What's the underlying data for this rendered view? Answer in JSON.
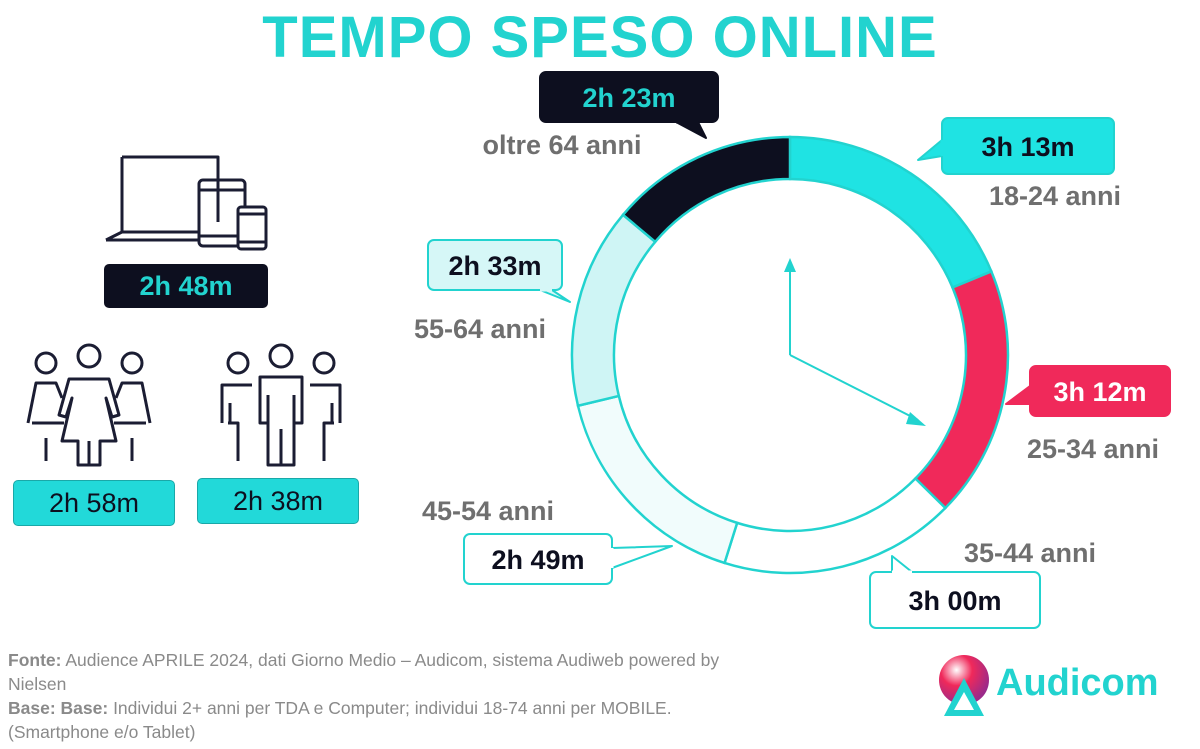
{
  "title": "TEMPO SPESO ONLINE",
  "devices": {
    "total_time": "2h 48m",
    "female_time": "2h 58m",
    "male_time": "2h 38m"
  },
  "chart_data": {
    "type": "pie",
    "title": "",
    "segments": [
      {
        "label": "18-24 anni",
        "value": "3h 13m",
        "minutes": 193,
        "color": "#1fe3e3",
        "bubble": "#1fe3e3",
        "text_color": "#0d0f1f"
      },
      {
        "label": "25-34 anni",
        "value": "3h 12m",
        "minutes": 192,
        "color": "#f0295a",
        "bubble": "#f0295a",
        "text_color": "#ffffff"
      },
      {
        "label": "35-44 anni",
        "value": "3h 00m",
        "minutes": 180,
        "color": "#ffffff",
        "bubble": "#ffffff",
        "text_color": "#0d0f1f"
      },
      {
        "label": "45-54 anni",
        "value": "2h 49m",
        "minutes": 169,
        "color": "#f1fcfc",
        "bubble": "#ffffff",
        "text_color": "#0d0f1f"
      },
      {
        "label": "55-64 anni",
        "value": "2h 33m",
        "minutes": 153,
        "color": "#cff5f5",
        "bubble": "#d6f7f7",
        "text_color": "#0d0f1f"
      },
      {
        "label": "oltre 64 anni",
        "value": "2h 23m",
        "minutes": 143,
        "color": "#0d0f1f",
        "bubble": "#0d0f1f",
        "text_color": "#22d3cf"
      }
    ]
  },
  "footer": {
    "fonte_label": "Fonte:",
    "fonte_text": " Audience APRILE 2024, dati Giorno Medio – Audicom, sistema Audiweb powered by Nielsen",
    "base_label": "Base:  Base:",
    "base_text": "  Individui 2+ anni per TDA e Computer; individui 18-74 anni per MOBILE.(Smartphone e/o Tablet)"
  },
  "logo": {
    "text": "Audicom"
  }
}
